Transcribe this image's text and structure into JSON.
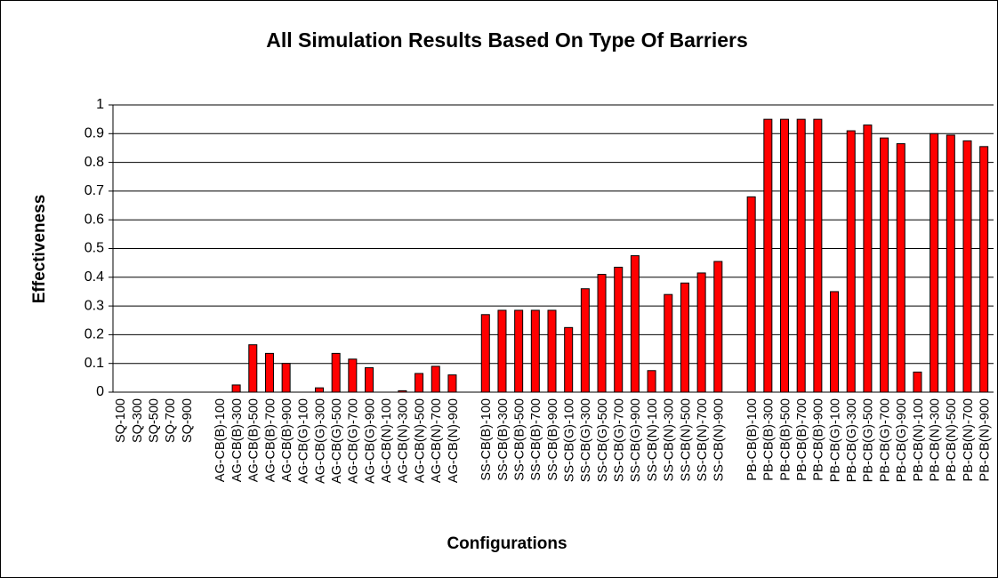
{
  "chart_data": {
    "type": "bar",
    "title": "All Simulation Results Based On Type Of Barriers",
    "x_label": "Configurations",
    "y_label": "Effectiveness",
    "categories": [
      "SQ-100",
      "SQ-300",
      "SQ-500",
      "SQ-700",
      "SQ-900",
      null,
      "AG-CB(B)-100",
      "AG-CB(B)-300",
      "AG-CB(B)-500",
      "AG-CB(B)-700",
      "AG-CB(B)-900",
      "AG-CB(G)-100",
      "AG-CB(G)-300",
      "AG-CB(G)-500",
      "AG-CB(G)-700",
      "AG-CB(G)-900",
      "AG-CB(N)-100",
      "AG-CB(N)-300",
      "AG-CB(N)-500",
      "AG-CB(N)-700",
      "AG-CB(N)-900",
      null,
      "SS-CB(B)-100",
      "SS-CB(B)-300",
      "SS-CB(B)-500",
      "SS-CB(B)-700",
      "SS-CB(B)-900",
      "SS-CB(G)-100",
      "SS-CB(G)-300",
      "SS-CB(G)-500",
      "SS-CB(G)-700",
      "SS-CB(G)-900",
      "SS-CB(N)-100",
      "SS-CB(N)-300",
      "SS-CB(N)-500",
      "SS-CB(N)-700",
      "SS-CB(N)-900",
      null,
      "PB-CB(B)-100",
      "PB-CB(B)-300",
      "PB-CB(B)-500",
      "PB-CB(B)-700",
      "PB-CB(B)-900",
      "PB-CB(G)-100",
      "PB-CB(G)-300",
      "PB-CB(G)-500",
      "PB-CB(G)-700",
      "PB-CB(G)-900",
      "PB-CB(N)-100",
      "PB-CB(N)-300",
      "PB-CB(N)-500",
      "PB-CB(N)-700",
      "PB-CB(N)-900"
    ],
    "values": [
      0,
      0,
      0,
      0,
      0,
      null,
      0,
      0.025,
      0.165,
      0.135,
      0.1,
      0,
      0.015,
      0.135,
      0.115,
      0.085,
      0,
      0.005,
      0.065,
      0.09,
      0.06,
      null,
      0.27,
      0.285,
      0.285,
      0.285,
      0.285,
      0.225,
      0.36,
      0.41,
      0.435,
      0.475,
      0.075,
      0.34,
      0.38,
      0.415,
      0.455,
      null,
      0.68,
      0.95,
      0.95,
      0.95,
      0.95,
      0.35,
      0.91,
      0.93,
      0.885,
      0.865,
      0.07,
      0.9,
      0.895,
      0.875,
      0.855
    ],
    "color": "#ff0000",
    "ylim": [
      0,
      1
    ],
    "yticks": [
      0,
      0.1,
      0.2,
      0.3,
      0.4,
      0.5,
      0.6,
      0.7,
      0.8,
      0.9,
      1
    ],
    "grid": true
  }
}
